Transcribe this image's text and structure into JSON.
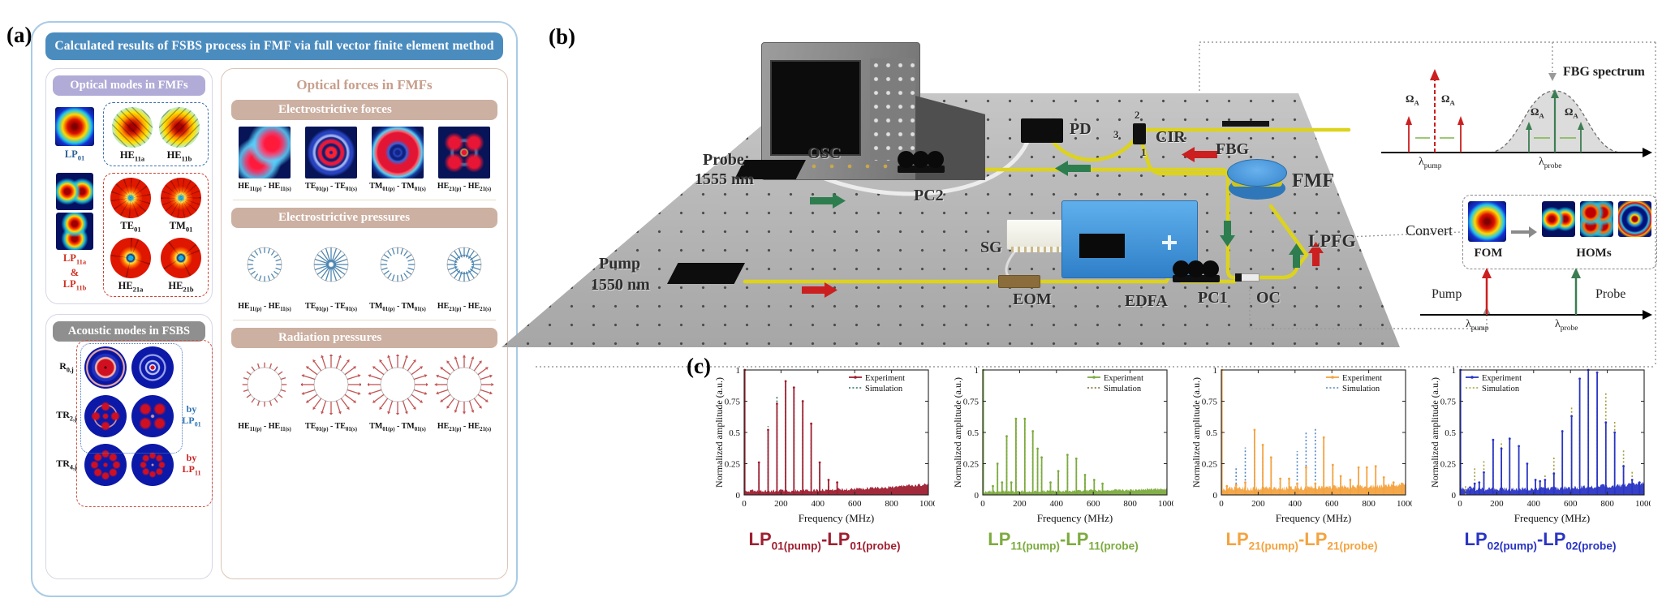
{
  "panel_a": {
    "label": "(a)",
    "title": "Calculated results of FSBS process in FMF via full vector finite element method",
    "optical_modes": {
      "header": "Optical modes in FMFs",
      "lp01": "LP_{01}",
      "he11a": "HE_{11a}",
      "he11b": "HE_{11b}",
      "lp11a": "LP_{11a}",
      "amp": "&",
      "lp11b": "LP_{11b}",
      "te01": "TE_{01}",
      "tm01": "TM_{01}",
      "he21a": "HE_{21a}",
      "he21b": "HE_{21b}"
    },
    "acoustic_modes": {
      "header": "Acoustic modes in FSBS",
      "rows": [
        "R_{0,j}",
        "TR_{2,j}",
        "TR_{4,j}"
      ],
      "by_lp01": "by LP_{01}",
      "by_lp11": "by LP_{11}"
    },
    "optical_forces": {
      "header": "Optical forces in FMFs",
      "pair_labels": [
        "HE_{11(p)} - HE_{11(s)}",
        "TE_{01(p)} - TE_{01(s)}",
        "TM_{01(p)} - TM_{01(s)}",
        "HE_{21(p)} - HE_{21(s)}"
      ],
      "sections": [
        {
          "title": "Electrostrictive forces",
          "kind": "force"
        },
        {
          "title": "Electrostrictive pressures",
          "kind": "pressure",
          "direction": "in",
          "color": "#4f87b0",
          "strengths": [
            0.25,
            1.0,
            0.35,
            0.45
          ]
        },
        {
          "title": "Radiation pressures",
          "kind": "pressure",
          "direction": "out",
          "color": "#c25555",
          "strengths": [
            0.3,
            1.0,
            1.0,
            0.85
          ]
        }
      ]
    }
  },
  "panel_b": {
    "label": "(b)",
    "components": {
      "osc": "OSC",
      "pd": "PD",
      "cir": "CIR",
      "port1": "1",
      "port2": "2",
      "port3": "3",
      "fbg": "FBG",
      "fmf": "FMF",
      "probe_name": "Probe",
      "probe_wl": "1555 nm",
      "pc2": "PC2",
      "sg": "SG",
      "pump_name": "Pump",
      "pump_wl": "1550 nm",
      "eom": "EOM",
      "edfa": "EDFA",
      "pc1": "PC1",
      "oc": "OC",
      "lpfg": "LPFG"
    },
    "fbg_inset": {
      "title": "FBG spectrum",
      "omega": "Ω_{A}",
      "lambda_pump": "λ_{pump}",
      "lambda_probe": "λ_{probe}"
    },
    "convert_inset": {
      "label": "Convert",
      "fom": "FOM",
      "homs": "HOMs"
    },
    "pump_probe_inset": {
      "pump": "Pump",
      "probe": "Probe",
      "lambda_pump": "λ_{pump}",
      "lambda_probe": "λ_{probe}"
    }
  },
  "panel_c": {
    "label": "(c)"
  },
  "chart_data": {
    "type": "line",
    "common": {
      "xlabel": "Frequency (MHz)",
      "ylabel": "Normalized amplitude (a.u.)",
      "xlim": [
        0,
        1000
      ],
      "ylim": [
        0,
        1
      ],
      "xticks": [
        0,
        200,
        400,
        600,
        800,
        1000
      ],
      "yticks": [
        0,
        0.25,
        0.5,
        0.75,
        1
      ],
      "legend": [
        "Experiment",
        "Simulation"
      ],
      "grid": false
    },
    "charts": [
      {
        "title": "LP_{01(pump)}-LP_{01(probe)}",
        "title_color": "#9e1f30",
        "exp_color": "#9e1f30",
        "sim_color": "#2f6f6f",
        "legend_pos": "top-right",
        "exp_peaks": [
          [
            3,
            1.0
          ],
          [
            80,
            0.26
          ],
          [
            130,
            0.52
          ],
          [
            178,
            0.73
          ],
          [
            225,
            0.91
          ],
          [
            270,
            0.86
          ],
          [
            318,
            0.75
          ],
          [
            364,
            0.57
          ],
          [
            410,
            0.26
          ],
          [
            458,
            0.12
          ],
          [
            505,
            0.1
          ]
        ],
        "sim_peaks": [
          [
            80,
            0.26
          ],
          [
            130,
            0.55
          ],
          [
            178,
            0.8
          ],
          [
            225,
            0.88
          ],
          [
            270,
            0.84
          ],
          [
            318,
            0.68
          ],
          [
            364,
            0.46
          ],
          [
            410,
            0.23
          ],
          [
            458,
            0.08
          ],
          [
            505,
            0.07
          ]
        ],
        "noise": {
          "base": 0.02,
          "rise": 0.055,
          "jit": 0.025,
          "seed": 7
        }
      },
      {
        "title": "LP_{11(pump)}-LP_{11(probe)}",
        "title_color": "#7cab3f",
        "exp_color": "#7cab3f",
        "sim_color": "#7a6228",
        "legend_pos": "top-right",
        "exp_peaks": [
          [
            3,
            1.0
          ],
          [
            55,
            0.07
          ],
          [
            80,
            0.25
          ],
          [
            105,
            0.1
          ],
          [
            130,
            0.47
          ],
          [
            155,
            0.1
          ],
          [
            180,
            0.61
          ],
          [
            228,
            0.61
          ],
          [
            272,
            0.51
          ],
          [
            298,
            0.37
          ],
          [
            320,
            0.3
          ],
          [
            368,
            0.1
          ],
          [
            410,
            0.19
          ],
          [
            460,
            0.32
          ],
          [
            508,
            0.29
          ],
          [
            555,
            0.16
          ],
          [
            605,
            0.12
          ],
          [
            650,
            0.09
          ]
        ],
        "sim_peaks": [
          [
            80,
            0.25
          ],
          [
            130,
            0.48
          ],
          [
            180,
            0.61
          ],
          [
            228,
            0.6
          ],
          [
            272,
            0.5
          ],
          [
            298,
            0.35
          ],
          [
            320,
            0.25
          ],
          [
            368,
            0.08
          ],
          [
            410,
            0.17
          ],
          [
            460,
            0.3
          ],
          [
            508,
            0.28
          ],
          [
            555,
            0.14
          ],
          [
            605,
            0.1
          ],
          [
            650,
            0.07
          ]
        ],
        "noise": {
          "base": 0.018,
          "rise": 0.022,
          "jit": 0.02,
          "seed": 13
        }
      },
      {
        "title": "LP_{21(pump)}-LP_{21(probe)}",
        "title_color": "#f4a340",
        "exp_color": "#f4a340",
        "sim_color": "#4f86c5",
        "legend_pos": "top-right",
        "exp_peaks": [
          [
            3,
            1.0
          ],
          [
            30,
            0.07
          ],
          [
            80,
            0.08
          ],
          [
            130,
            0.1
          ],
          [
            180,
            0.52
          ],
          [
            225,
            0.4
          ],
          [
            270,
            0.3
          ],
          [
            320,
            0.13
          ],
          [
            368,
            0.13
          ],
          [
            412,
            0.09
          ],
          [
            460,
            0.22
          ],
          [
            510,
            0.09
          ],
          [
            556,
            0.46
          ],
          [
            605,
            0.24
          ],
          [
            648,
            0.15
          ],
          [
            700,
            0.12
          ],
          [
            745,
            0.22
          ],
          [
            790,
            0.22
          ],
          [
            838,
            0.23
          ],
          [
            882,
            0.14
          ],
          [
            935,
            0.1
          ],
          [
            980,
            0.09
          ]
        ],
        "sim_peaks": [
          [
            80,
            0.23
          ],
          [
            130,
            0.38
          ],
          [
            180,
            0.37
          ],
          [
            225,
            0.3
          ],
          [
            270,
            0.3
          ],
          [
            320,
            0.1
          ],
          [
            368,
            0.13
          ],
          [
            412,
            0.35
          ],
          [
            460,
            0.51
          ],
          [
            510,
            0.53
          ],
          [
            556,
            0.4
          ],
          [
            605,
            0.25
          ],
          [
            648,
            0.12
          ],
          [
            700,
            0.08
          ],
          [
            745,
            0.07
          ]
        ],
        "noise": {
          "base": 0.032,
          "rise": 0.03,
          "jit": 0.04,
          "seed": 21
        }
      },
      {
        "title": "LP_{02(pump)}-LP_{02(probe)}",
        "title_color": "#2a35c4",
        "exp_color": "#2a35c4",
        "sim_color": "#a79d3c",
        "legend_pos": "top-left",
        "exp_peaks": [
          [
            3,
            1.0
          ],
          [
            55,
            0.06
          ],
          [
            80,
            0.09
          ],
          [
            105,
            0.1
          ],
          [
            130,
            0.18
          ],
          [
            180,
            0.44
          ],
          [
            225,
            0.37
          ],
          [
            270,
            0.45
          ],
          [
            320,
            0.39
          ],
          [
            365,
            0.25
          ],
          [
            410,
            0.12
          ],
          [
            435,
            0.11
          ],
          [
            462,
            0.12
          ],
          [
            510,
            0.17
          ],
          [
            556,
            0.51
          ],
          [
            606,
            0.63
          ],
          [
            650,
            0.93
          ],
          [
            697,
            1.0
          ],
          [
            745,
            0.98
          ],
          [
            792,
            0.58
          ],
          [
            840,
            0.5
          ],
          [
            888,
            0.23
          ],
          [
            935,
            0.12
          ],
          [
            975,
            0.1
          ]
        ],
        "sim_peaks": [
          [
            30,
            0.08
          ],
          [
            80,
            0.23
          ],
          [
            130,
            0.28
          ],
          [
            180,
            0.42
          ],
          [
            225,
            0.43
          ],
          [
            270,
            0.3
          ],
          [
            320,
            0.16
          ],
          [
            462,
            0.17
          ],
          [
            510,
            0.3
          ],
          [
            556,
            0.3
          ],
          [
            606,
            0.71
          ],
          [
            650,
            0.78
          ],
          [
            697,
            0.88
          ],
          [
            745,
            0.7
          ],
          [
            792,
            0.82
          ],
          [
            840,
            0.6
          ],
          [
            888,
            0.37
          ],
          [
            935,
            0.2
          ]
        ],
        "noise": {
          "base": 0.028,
          "rise": 0.045,
          "jit": 0.035,
          "seed": 31
        }
      }
    ]
  }
}
